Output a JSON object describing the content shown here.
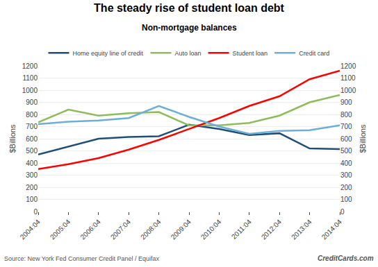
{
  "chart_data": {
    "type": "line",
    "title": "The steady rise of student loan debt",
    "subtitle": "Non-mortgage balances",
    "ylabel": "$Billions",
    "y2label": "$Billions",
    "annotations": [
      "Source: New York Fed Consumer Credit Panel / Equifax",
      "CreditCards.com"
    ],
    "categories": [
      "2004:04",
      "2005:04",
      "2006:04",
      "2007:04",
      "2008:04",
      "2009:04",
      "2010:04",
      "2011:04",
      "2012:04",
      "2013:04",
      "2014:04"
    ],
    "series": [
      {
        "name": "Home equity line of credit",
        "color": "#1f4e79",
        "values": [
          470,
          535,
          600,
          615,
          620,
          715,
          680,
          630,
          645,
          520,
          515
        ]
      },
      {
        "name": "Auto loan",
        "color": "#8fbc5a",
        "values": [
          735,
          840,
          790,
          810,
          820,
          710,
          710,
          730,
          790,
          900,
          960
        ]
      },
      {
        "name": "Student loan",
        "color": "#ff0000",
        "values": [
          350,
          390,
          440,
          510,
          590,
          680,
          770,
          870,
          950,
          1090,
          1160
        ]
      },
      {
        "name": "Credit card",
        "color": "#6baed6",
        "values": [
          720,
          740,
          750,
          770,
          870,
          780,
          700,
          640,
          665,
          670,
          710
        ]
      }
    ],
    "ylim": [
      0,
      1200
    ],
    "yticks": [
      0,
      100,
      200,
      300,
      400,
      500,
      600,
      700,
      800,
      900,
      1000,
      1100,
      1200
    ],
    "y2lim": [
      0,
      1200
    ],
    "y2ticks": [
      0,
      100,
      200,
      300,
      400,
      500,
      600,
      700,
      800,
      900,
      1000,
      1100,
      1200
    ],
    "grid": true,
    "legend": "top"
  }
}
